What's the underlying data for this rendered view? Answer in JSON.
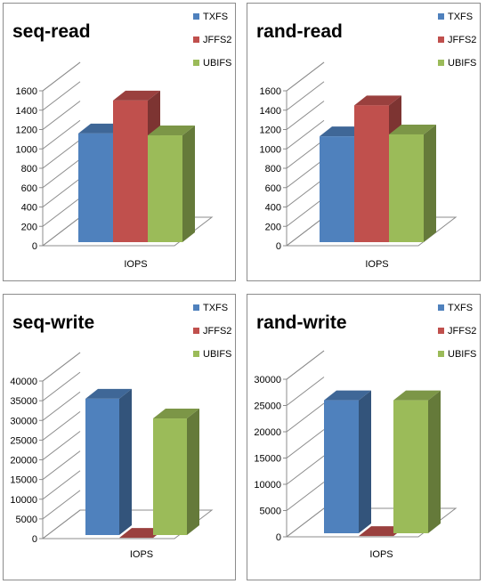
{
  "chart_data": [
    {
      "type": "bar",
      "title": "seq-read",
      "categories": [
        "IOPS"
      ],
      "series": [
        {
          "name": "TXFS",
          "values": [
            1160
          ]
        },
        {
          "name": "JFFS2",
          "values": [
            1500
          ]
        },
        {
          "name": "UBIFS",
          "values": [
            1140
          ]
        }
      ],
      "ylim": [
        0,
        1600
      ],
      "yticks": [
        0,
        200,
        400,
        600,
        800,
        1000,
        1200,
        1400,
        1600
      ],
      "legend": "top-right",
      "grid": false,
      "colors": [
        "#4f81bd",
        "#c0504d",
        "#9bbb59"
      ]
    },
    {
      "type": "bar",
      "title": "rand-read",
      "categories": [
        "IOPS"
      ],
      "series": [
        {
          "name": "TXFS",
          "values": [
            1130
          ]
        },
        {
          "name": "JFFS2",
          "values": [
            1450
          ]
        },
        {
          "name": "UBIFS",
          "values": [
            1150
          ]
        }
      ],
      "ylim": [
        0,
        1600
      ],
      "yticks": [
        0,
        200,
        400,
        600,
        800,
        1000,
        1200,
        1400,
        1600
      ],
      "legend": "top-right",
      "grid": false,
      "colors": [
        "#4f81bd",
        "#c0504d",
        "#9bbb59"
      ]
    },
    {
      "type": "bar",
      "title": "seq-write",
      "categories": [
        "IOPS"
      ],
      "series": [
        {
          "name": "TXFS",
          "values": [
            35500
          ]
        },
        {
          "name": "JFFS2",
          "values": [
            200
          ]
        },
        {
          "name": "UBIFS",
          "values": [
            30500
          ]
        }
      ],
      "ylim": [
        0,
        40000
      ],
      "yticks": [
        0,
        5000,
        10000,
        15000,
        20000,
        25000,
        30000,
        35000,
        40000
      ],
      "legend": "top-right",
      "grid": false,
      "colors": [
        "#4f81bd",
        "#c0504d",
        "#9bbb59"
      ]
    },
    {
      "type": "bar",
      "title": "rand-write",
      "categories": [
        "IOPS"
      ],
      "series": [
        {
          "name": "TXFS",
          "values": [
            26000
          ]
        },
        {
          "name": "JFFS2",
          "values": [
            150
          ]
        },
        {
          "name": "UBIFS",
          "values": [
            26000
          ]
        }
      ],
      "ylim": [
        0,
        30000
      ],
      "yticks": [
        0,
        5000,
        10000,
        15000,
        20000,
        25000,
        30000
      ],
      "legend": "top-right",
      "grid": false,
      "colors": [
        "#4f81bd",
        "#c0504d",
        "#9bbb59"
      ]
    }
  ]
}
